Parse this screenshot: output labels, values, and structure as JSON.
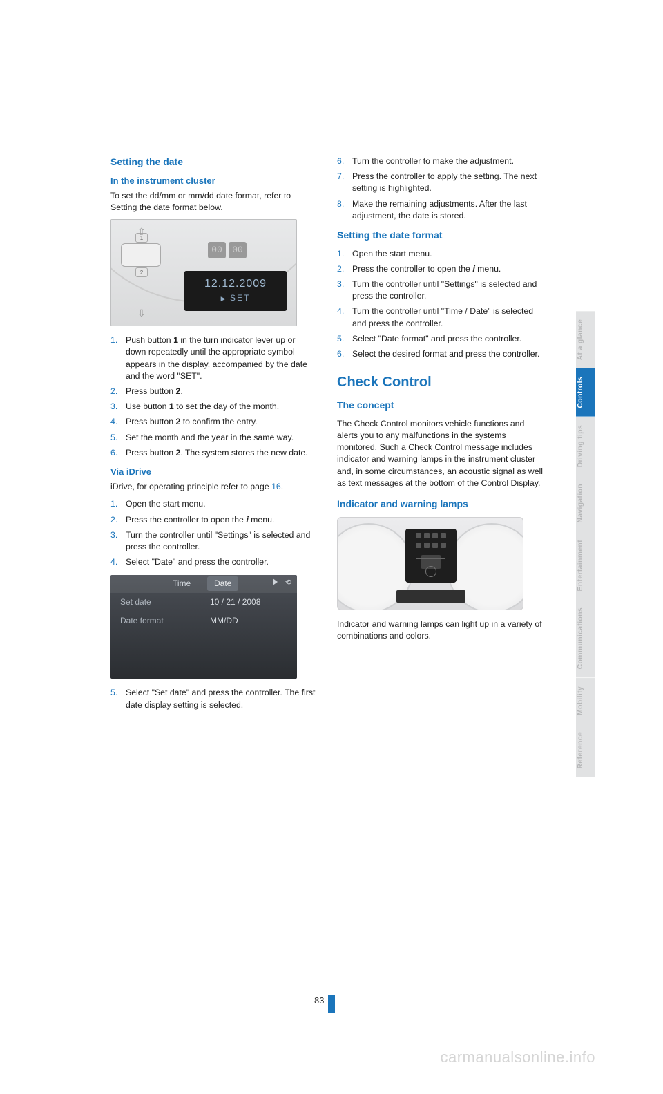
{
  "left": {
    "h1": "Setting the date",
    "h2": "In the instrument cluster",
    "p1": "To set the dd/mm or mm/dd date format, refer to Setting the date format below.",
    "fig1": {
      "btn1": "1",
      "btn2": "2",
      "dig1": "00",
      "dig2": "00",
      "date": "12.12.2009",
      "set": "SET"
    },
    "steps1": [
      "Push button 1 in the turn indicator lever up or down repeatedly until the appropriate symbol appears in the display, accompanied by the date and the word \"SET\".",
      "Press button 2.",
      "Use button 1 to set the day of the month.",
      "Press button 2 to confirm the entry.",
      "Set the month and the year in the same way.",
      "Press button 2.\nThe system stores the new date."
    ],
    "h3": "Via iDrive",
    "p2a": "iDrive, for operating principle refer to page ",
    "p2ref": "16",
    "p2b": ".",
    "steps2": [
      "Open the start menu.",
      "Press the controller to open the 𝒊 menu.",
      "Turn the controller until \"Settings\" is selected and press the controller.",
      "Select \"Date\" and press the controller."
    ],
    "fig2": {
      "time": "Time",
      "date": "Date",
      "row1_label": "Set date",
      "row1_value": "10 / 21 / 2008",
      "row2_label": "Date format",
      "row2_value": "MM/DD"
    },
    "steps3": [
      "Select \"Set date\" and press the controller. The first date display setting is selected."
    ]
  },
  "right": {
    "steps_cont": [
      "Turn the controller to make the adjustment.",
      "Press the controller to apply the setting. The next setting is highlighted.",
      "Make the remaining adjustments. After the last adjustment, the date is stored."
    ],
    "steps_cont_start": 6,
    "h1": "Setting the date format",
    "steps_fmt": [
      "Open the start menu.",
      "Press the controller to open the 𝒊 menu.",
      "Turn the controller until \"Settings\" is selected and press the controller.",
      "Turn the controller until \"Time / Date\" is selected and press the controller.",
      "Select \"Date format\" and press the controller.",
      "Select the desired format and press the controller."
    ],
    "section": "Check Control",
    "h2": "The concept",
    "p1": "The Check Control monitors vehicle functions and alerts you to any malfunctions in the systems monitored. Such a Check Control message includes indicator and warning lamps in the instrument cluster and, in some circumstances, an acoustic signal as well as text messages at the bottom of the Control Display.",
    "h3": "Indicator and warning lamps",
    "p2": "Indicator and warning lamps can light up in a variety of combinations and colors."
  },
  "tabs": [
    {
      "label": "At a glance",
      "active": false
    },
    {
      "label": "Controls",
      "active": true
    },
    {
      "label": "Driving tips",
      "active": false
    },
    {
      "label": "Navigation",
      "active": false
    },
    {
      "label": "Entertainment",
      "active": false
    },
    {
      "label": "Communications",
      "active": false
    },
    {
      "label": "Mobility",
      "active": false
    },
    {
      "label": "Reference",
      "active": false
    }
  ],
  "page_number": "83",
  "watermark": "carmanualsonline.info",
  "colors": {
    "accent": "#1b75bb",
    "tab_inactive_bg": "#e1e2e3",
    "tab_inactive_fg": "#b6b7b8"
  }
}
